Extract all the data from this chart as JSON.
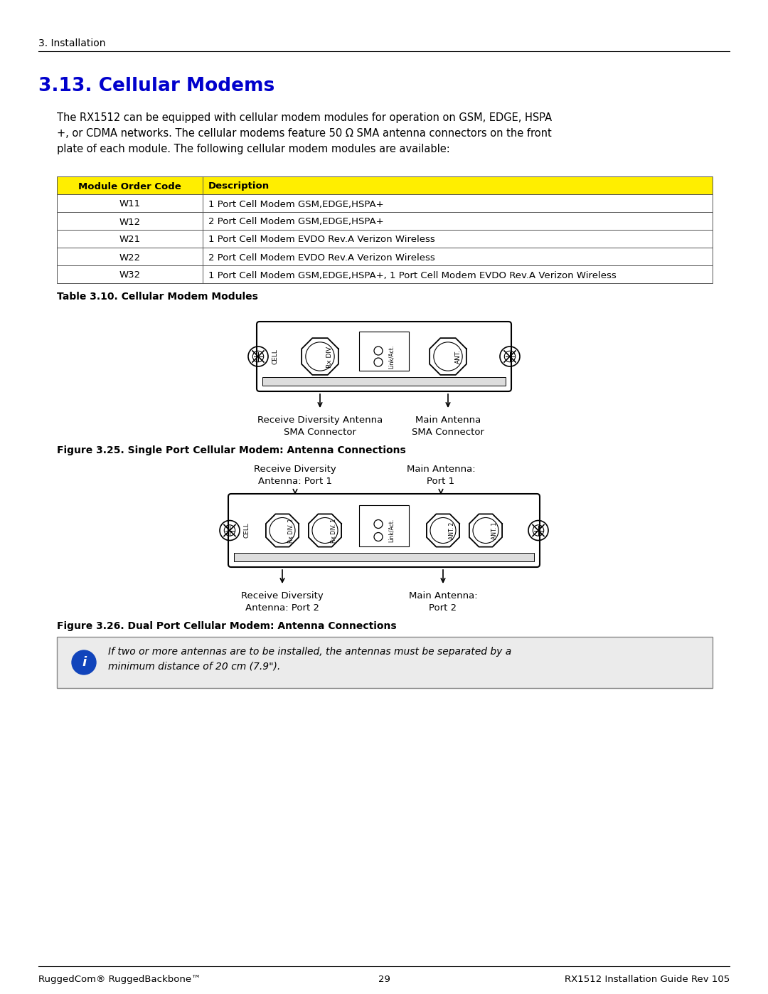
{
  "bg_color": "#ffffff",
  "header_text": "3. Installation",
  "title": "3.13. Cellular Modems",
  "title_color": "#0000cc",
  "body_text1": "The RX1512 can be equipped with cellular modem modules for operation on GSM, EDGE, HSPA\n+, or CDMA networks. The cellular modems feature 50 Ω SMA antenna connectors on the front\nplate of each module. The following cellular modem modules are available:",
  "table_header_bg": "#ffee00",
  "table_header_col1": "Module Order Code",
  "table_header_col2": "Description",
  "table_rows": [
    [
      "W11",
      "1 Port Cell Modem GSM,EDGE,HSPA+"
    ],
    [
      "W12",
      "2 Port Cell Modem GSM,EDGE,HSPA+"
    ],
    [
      "W21",
      "1 Port Cell Modem EVDO Rev.A Verizon Wireless"
    ],
    [
      "W22",
      "2 Port Cell Modem EVDO Rev.A Verizon Wireless"
    ],
    [
      "W32",
      "1 Port Cell Modem GSM,EDGE,HSPA+, 1 Port Cell Modem EVDO Rev.A Verizon Wireless"
    ]
  ],
  "table_caption": "Table 3.10. Cellular Modem Modules",
  "fig25_caption": "Figure 3.25. Single Port Cellular Modem: Antenna Connections",
  "fig25_label1_line1": "Receive Diversity Antenna",
  "fig25_label1_line2": "SMA Connector",
  "fig25_label2_line1": "Main Antenna",
  "fig25_label2_line2": "SMA Connector",
  "fig26_caption": "Figure 3.26. Dual Port Cellular Modem: Antenna Connections",
  "fig26_top_left_line1": "Receive Diversity",
  "fig26_top_left_line2": "Antenna: Port 1",
  "fig26_top_right_line1": "Main Antenna:",
  "fig26_top_right_line2": "Port 1",
  "fig26_bot_left_line1": "Receive Diversity",
  "fig26_bot_left_line2": "Antenna: Port 2",
  "fig26_bot_right_line1": "Main Antenna:",
  "fig26_bot_right_line2": "Port 2",
  "note_text_line1": "If two or more antennas are to be installed, the antennas must be separated by a",
  "note_text_line2": "minimum distance of 20 cm (7.9\").",
  "footer_left": "RuggedCom® RuggedBackbone™",
  "footer_center": "29",
  "footer_right": "RX1512 Installation Guide Rev 105"
}
